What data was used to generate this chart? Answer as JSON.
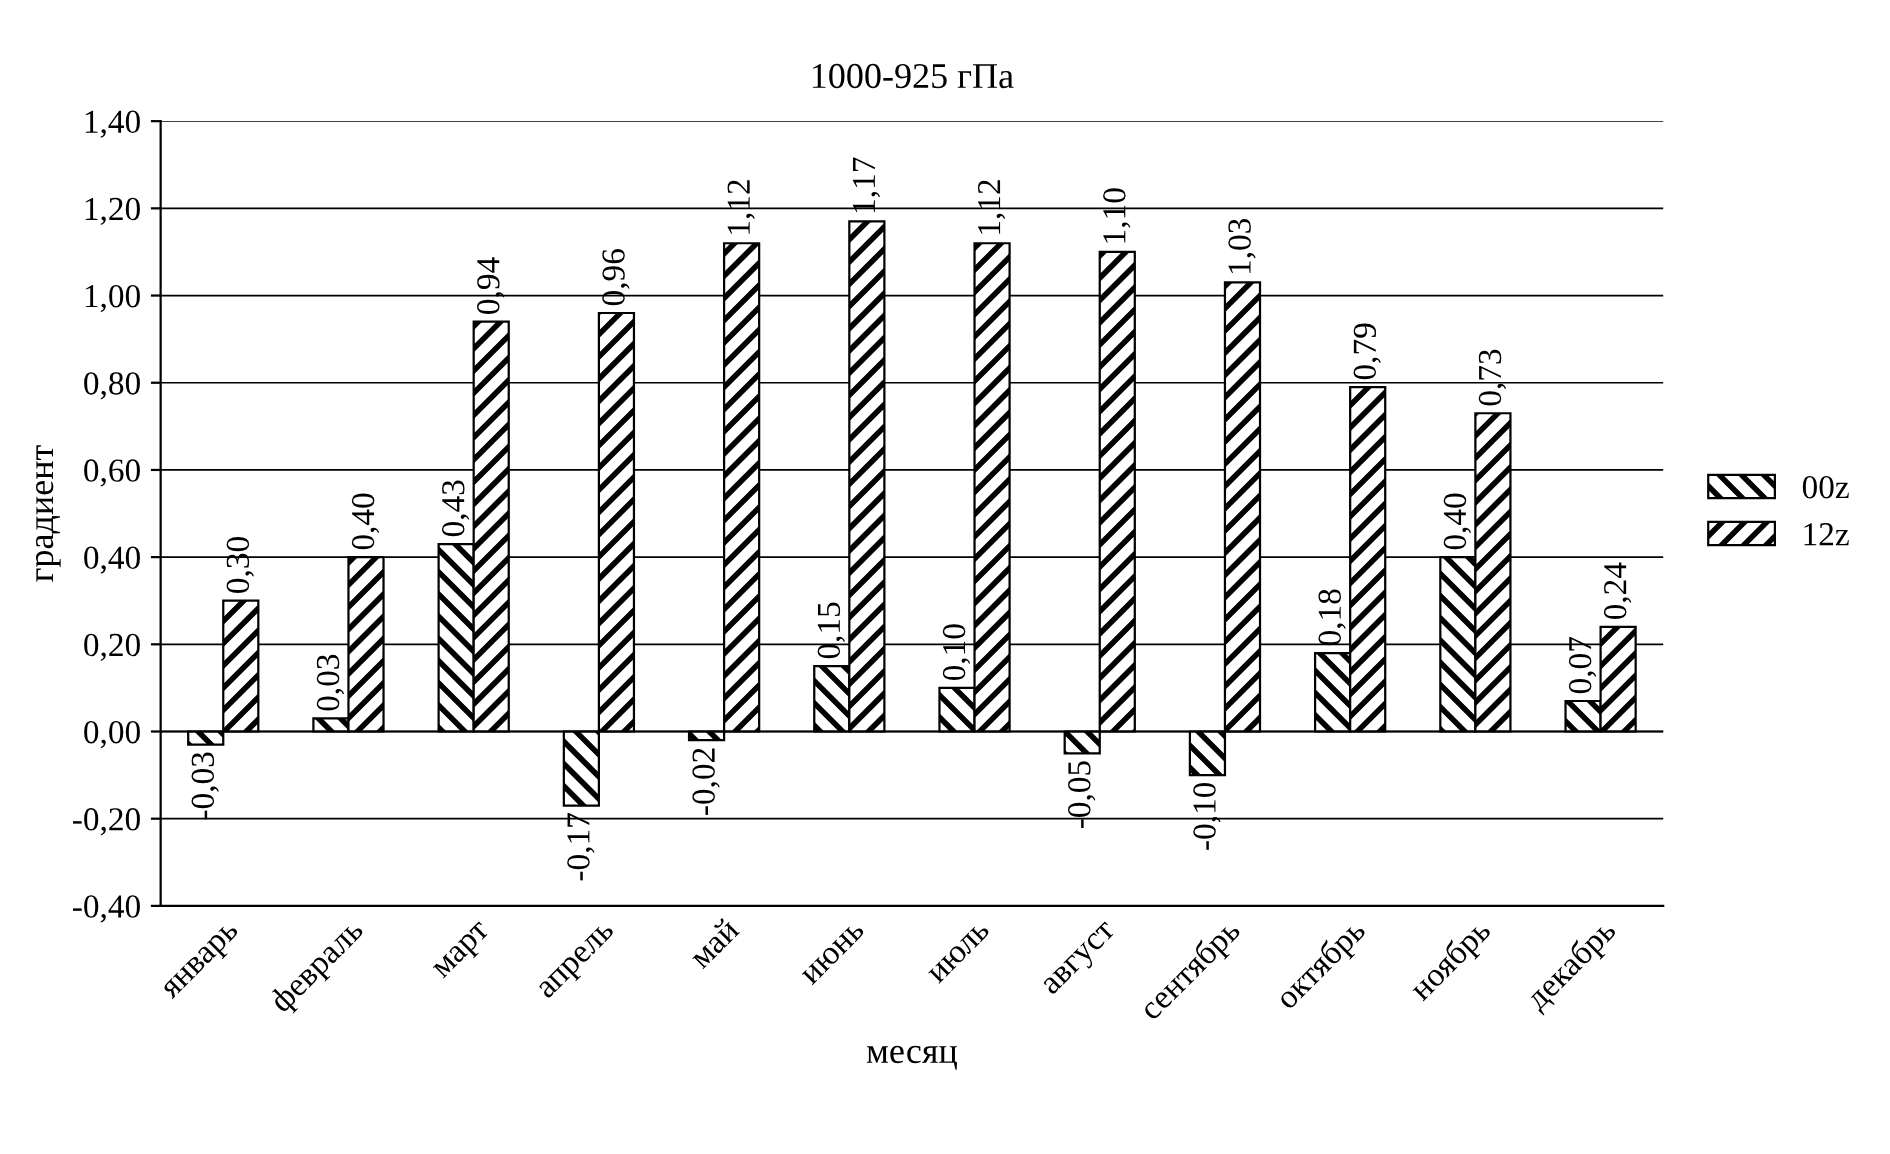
{
  "chart_data": {
    "type": "bar",
    "title": "1000-925 гПа",
    "xlabel": "месяц",
    "ylabel": "градиент",
    "categories": [
      "январь",
      "февраль",
      "март",
      "апрель",
      "май",
      "июнь",
      "июль",
      "август",
      "сентябрь",
      "октябрь",
      "ноябрь",
      "декабрь"
    ],
    "series": [
      {
        "name": "00z",
        "color": "#000000",
        "values": [
          -0.03,
          0.03,
          0.43,
          -0.17,
          -0.02,
          0.15,
          0.1,
          -0.05,
          -0.1,
          0.18,
          0.4,
          0.07
        ],
        "value_labels": [
          "-0,03",
          "0,03",
          "0,43",
          "-0,17",
          "-0,02",
          "0,15",
          "0,10",
          "-0,05",
          "-0,10",
          "0,18",
          "0,40",
          "0,07"
        ]
      },
      {
        "name": "12z",
        "color": "#000000",
        "values": [
          0.3,
          0.4,
          0.94,
          0.96,
          1.12,
          1.17,
          1.12,
          1.1,
          1.03,
          0.79,
          0.73,
          0.24
        ],
        "value_labels": [
          "0,30",
          "0,40",
          "0,94",
          "0,96",
          "1,12",
          "1,17",
          "1,12",
          "1,10",
          "1,03",
          "0,79",
          "0,73",
          "0,24"
        ]
      }
    ],
    "ylim": [
      -0.4,
      1.4
    ],
    "yticks": [
      {
        "value": -0.4,
        "label": "-0,40"
      },
      {
        "value": -0.2,
        "label": "-0,20"
      },
      {
        "value": 0,
        "label": "0,00"
      },
      {
        "value": 0.2,
        "label": "0,20"
      },
      {
        "value": 0.4,
        "label": "0,40"
      },
      {
        "value": 0.6,
        "label": "0,60"
      },
      {
        "value": 0.8,
        "label": "0,80"
      },
      {
        "value": 1.0,
        "label": "1,00"
      },
      {
        "value": 1.2,
        "label": "1,20"
      },
      {
        "value": 1.4,
        "label": "1,40"
      }
    ],
    "grid": "y",
    "legend": "right"
  }
}
